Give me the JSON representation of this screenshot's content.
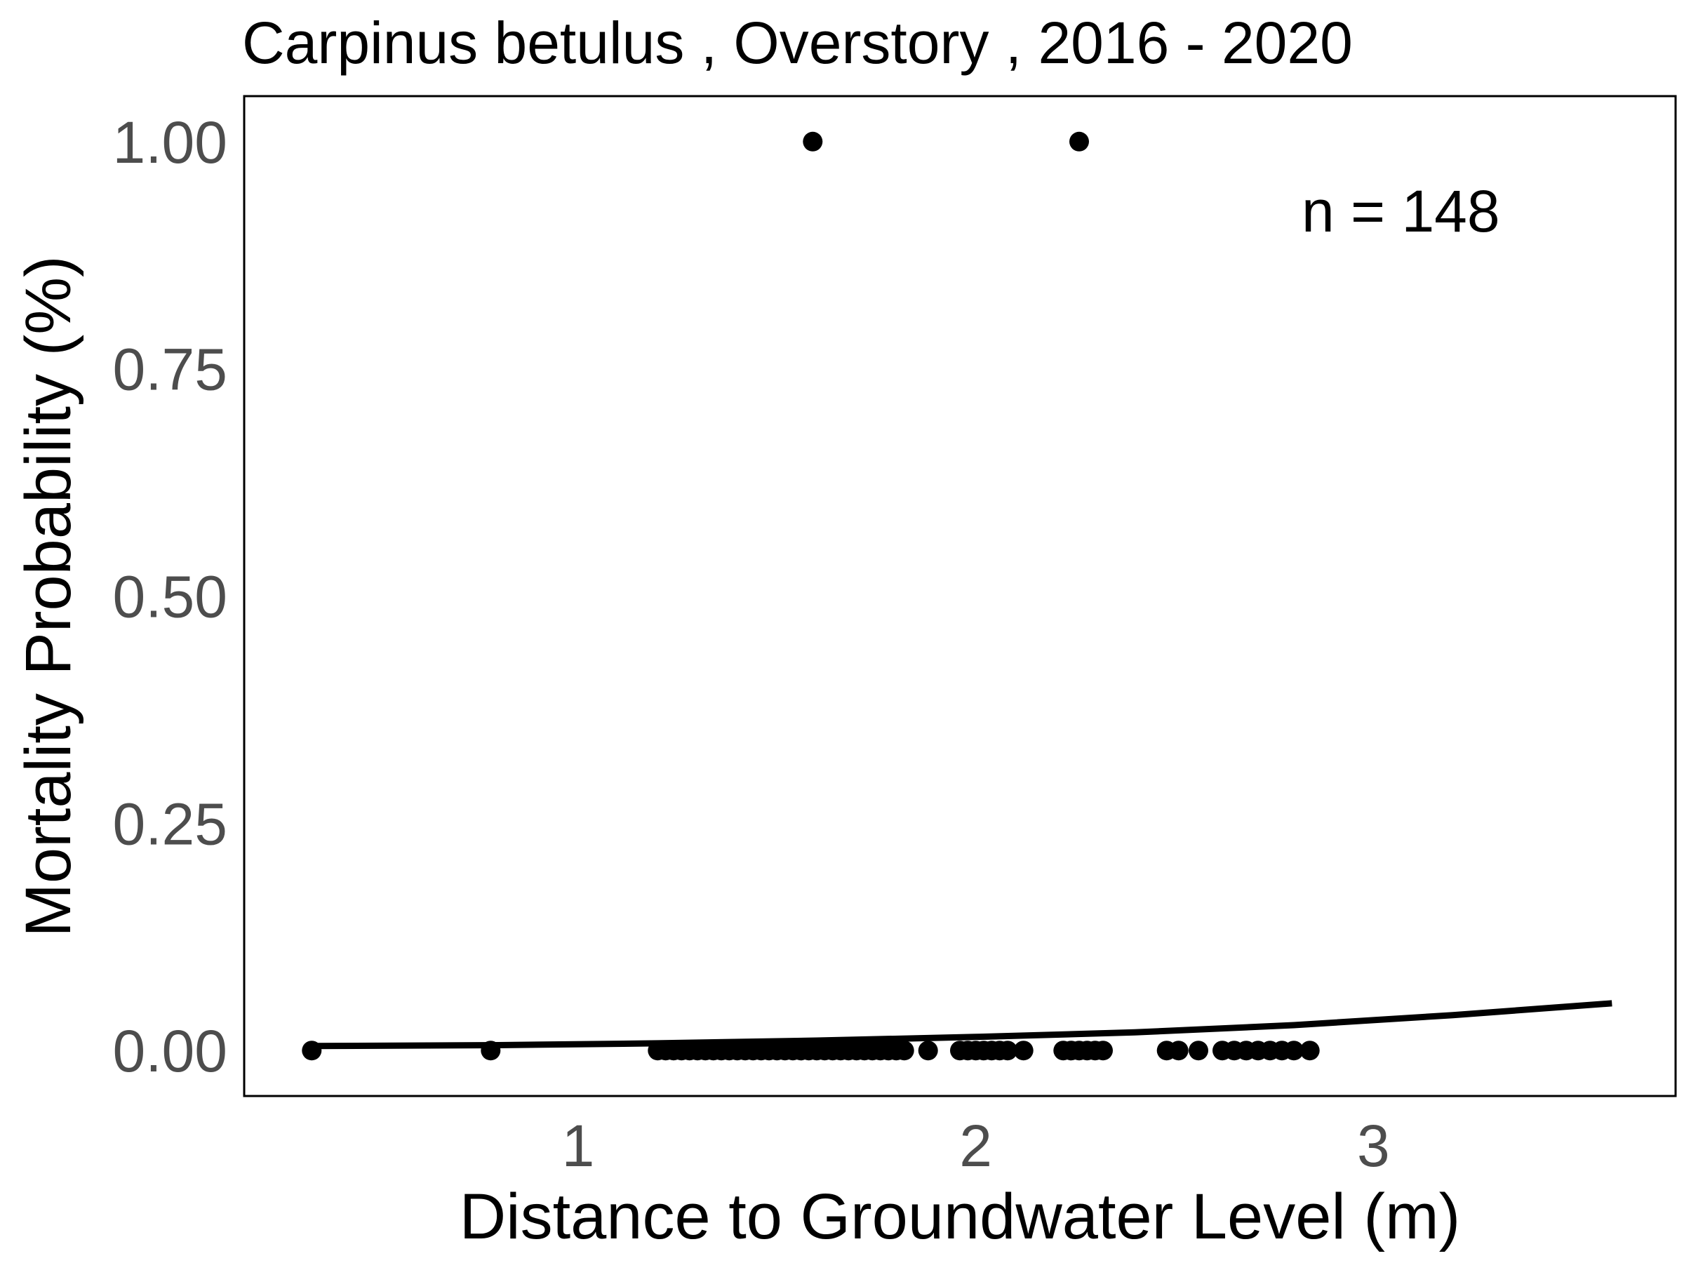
{
  "chart_data": {
    "type": "scatter",
    "title": "Carpinus betulus , Overstory , 2016 - 2020",
    "xlabel": "Distance to Groundwater Level (m)",
    "ylabel": "Mortality Probability (%)",
    "xlim": [
      0.16,
      3.76
    ],
    "ylim": [
      -0.05,
      1.05
    ],
    "x_ticks": [
      1,
      2,
      3
    ],
    "x_tick_labels": [
      "1",
      "2",
      "3"
    ],
    "y_ticks": [
      0,
      0.25,
      0.5,
      0.75,
      1.0
    ],
    "y_tick_labels": [
      "0.00",
      "0.25",
      "0.50",
      "0.75",
      "1.00"
    ],
    "grid": false,
    "annotation": "n =  148",
    "colors": {
      "points": "#000000",
      "line": "#000000",
      "frame": "#000000",
      "ticks": "#4d4d4d"
    },
    "points": {
      "x": [
        0.33,
        0.78,
        1.2,
        1.22,
        1.24,
        1.26,
        1.28,
        1.3,
        1.32,
        1.34,
        1.36,
        1.38,
        1.4,
        1.42,
        1.44,
        1.46,
        1.48,
        1.5,
        1.52,
        1.54,
        1.56,
        1.58,
        1.6,
        1.62,
        1.64,
        1.66,
        1.68,
        1.7,
        1.72,
        1.74,
        1.76,
        1.78,
        1.8,
        1.82,
        1.88,
        1.96,
        1.98,
        2.0,
        2.02,
        2.04,
        2.06,
        2.08,
        2.12,
        2.22,
        2.24,
        2.26,
        2.28,
        2.3,
        2.32,
        2.48,
        2.51,
        2.56,
        2.62,
        2.65,
        2.68,
        2.71,
        2.74,
        2.77,
        2.8,
        2.84,
        1.59,
        2.26
      ],
      "y": [
        0,
        0,
        0,
        0,
        0,
        0,
        0,
        0,
        0,
        0,
        0,
        0,
        0,
        0,
        0,
        0,
        0,
        0,
        0,
        0,
        0,
        0,
        0,
        0,
        0,
        0,
        0,
        0,
        0,
        0,
        0,
        0,
        0,
        0,
        0,
        0,
        0,
        0,
        0,
        0,
        0,
        0,
        0,
        0,
        0,
        0,
        0,
        0,
        0,
        0,
        0,
        0,
        0,
        0,
        0,
        0,
        0,
        0,
        0,
        0,
        1,
        1
      ]
    },
    "fit_line": {
      "x": [
        0.33,
        0.8,
        1.2,
        1.6,
        2.0,
        2.4,
        2.8,
        3.2,
        3.6
      ],
      "y": [
        0.005,
        0.006,
        0.008,
        0.011,
        0.015,
        0.02,
        0.028,
        0.039,
        0.052
      ]
    }
  }
}
